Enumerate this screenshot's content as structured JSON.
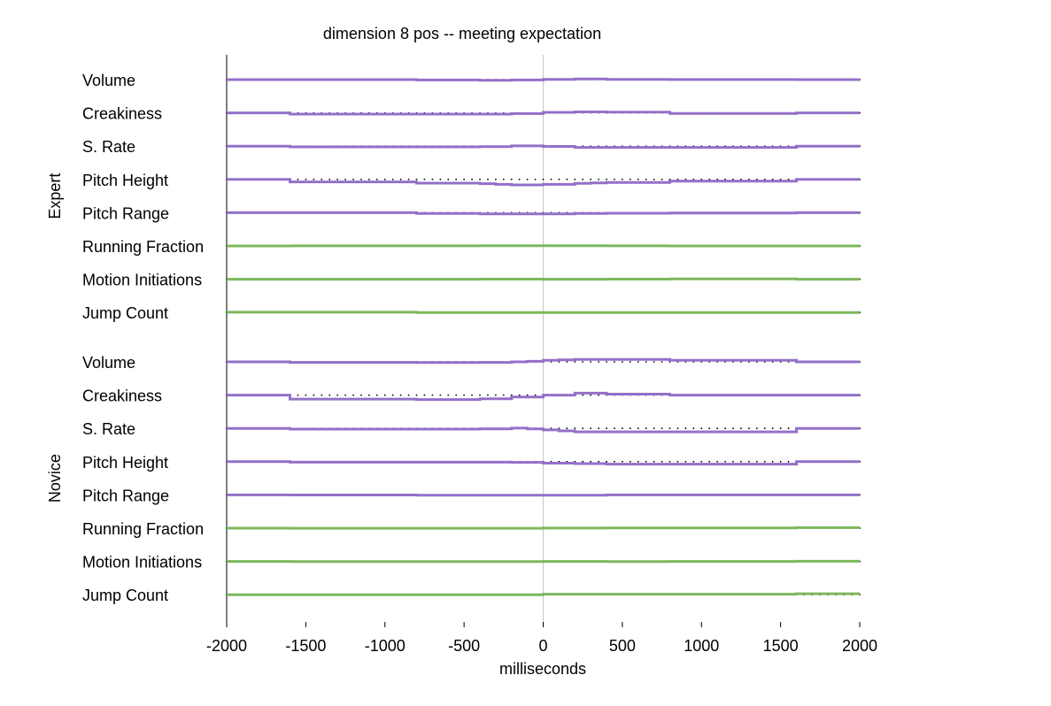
{
  "chart_data": {
    "type": "line",
    "title": "dimension 8 pos -- meeting expectation",
    "xlabel": "milliseconds",
    "xlim": [
      -2000,
      2000
    ],
    "xticks": [
      -2000,
      -1500,
      -1000,
      -500,
      0,
      500,
      1000,
      1500,
      2000
    ],
    "zero_line": 0,
    "colors": {
      "prosody": "#9370c8",
      "motion": "#7cb85c",
      "baseline_dots": "#000000",
      "zero_line": "#c8c8c8"
    },
    "groups": [
      {
        "name": "Expert",
        "tracks": [
          {
            "label": "Volume",
            "kind": "prosody",
            "segments": [
              [
                -2000,
                -1600,
                0
              ],
              [
                -1600,
                -800,
                0
              ],
              [
                -800,
                -400,
                -0.8
              ],
              [
                -400,
                -200,
                -1.5
              ],
              [
                -200,
                0,
                -0.7
              ],
              [
                0,
                200,
                0.5
              ],
              [
                200,
                400,
                1.2
              ],
              [
                400,
                800,
                0.5
              ],
              [
                800,
                1600,
                0.2
              ],
              [
                1600,
                2000,
                0
              ]
            ]
          },
          {
            "label": "Creakiness",
            "kind": "prosody",
            "segments": [
              [
                -2000,
                -1600,
                0
              ],
              [
                -1600,
                -800,
                -2.5
              ],
              [
                -800,
                -400,
                -2.5
              ],
              [
                -400,
                -200,
                -2.5
              ],
              [
                -200,
                0,
                -1.5
              ],
              [
                0,
                200,
                1
              ],
              [
                200,
                400,
                2
              ],
              [
                400,
                800,
                1.5
              ],
              [
                800,
                1600,
                -1
              ],
              [
                1600,
                2000,
                0
              ]
            ]
          },
          {
            "label": "S. Rate",
            "kind": "prosody",
            "segments": [
              [
                -2000,
                -1600,
                0
              ],
              [
                -1600,
                -800,
                -1.5
              ],
              [
                -800,
                -400,
                -1.5
              ],
              [
                -400,
                -200,
                -1
              ],
              [
                -200,
                0,
                0.5
              ],
              [
                0,
                200,
                -0.5
              ],
              [
                200,
                400,
                -2.5
              ],
              [
                400,
                800,
                -2.5
              ],
              [
                800,
                1600,
                -2.5
              ],
              [
                1600,
                2000,
                0
              ]
            ]
          },
          {
            "label": "Pitch Height",
            "kind": "prosody",
            "segments": [
              [
                -2000,
                -1600,
                0
              ],
              [
                -1600,
                -800,
                -5
              ],
              [
                -800,
                -400,
                -7.5
              ],
              [
                -400,
                -300,
                -8.5
              ],
              [
                -300,
                -200,
                -10
              ],
              [
                -200,
                0,
                -11
              ],
              [
                0,
                200,
                -10
              ],
              [
                200,
                300,
                -8
              ],
              [
                300,
                400,
                -7
              ],
              [
                400,
                800,
                -6
              ],
              [
                800,
                1600,
                -3.5
              ],
              [
                1600,
                2000,
                0
              ]
            ]
          },
          {
            "label": "Pitch Range",
            "kind": "prosody",
            "segments": [
              [
                -2000,
                -800,
                0
              ],
              [
                -800,
                -400,
                -1.5
              ],
              [
                -400,
                -200,
                -2.5
              ],
              [
                -200,
                0,
                -2.5
              ],
              [
                0,
                200,
                -2.5
              ],
              [
                200,
                400,
                -1.5
              ],
              [
                400,
                800,
                -1
              ],
              [
                800,
                1600,
                -0.5
              ],
              [
                1600,
                2000,
                0
              ]
            ]
          },
          {
            "label": "Running Fraction",
            "kind": "motion",
            "segments": [
              [
                -2000,
                -1600,
                0
              ],
              [
                -1600,
                -400,
                0.2
              ],
              [
                -400,
                400,
                0.5
              ],
              [
                400,
                800,
                0.2
              ],
              [
                800,
                1600,
                0
              ],
              [
                1600,
                2000,
                0
              ]
            ]
          },
          {
            "label": "Motion Initiations",
            "kind": "motion",
            "segments": [
              [
                -2000,
                -1600,
                0
              ],
              [
                -1600,
                -400,
                0
              ],
              [
                -400,
                0,
                0.2
              ],
              [
                0,
                400,
                0
              ],
              [
                400,
                800,
                0.2
              ],
              [
                800,
                1600,
                0.5
              ],
              [
                1600,
                2000,
                0
              ]
            ]
          },
          {
            "label": "Jump Count",
            "kind": "motion",
            "segments": [
              [
                -2000,
                -800,
                0.5
              ],
              [
                -800,
                2000,
                0
              ]
            ]
          }
        ]
      },
      {
        "name": "Novice",
        "tracks": [
          {
            "label": "Volume",
            "kind": "prosody",
            "segments": [
              [
                -2000,
                -1600,
                0
              ],
              [
                -1600,
                -800,
                -1
              ],
              [
                -800,
                -400,
                -1.5
              ],
              [
                -400,
                -200,
                -1
              ],
              [
                -200,
                -100,
                0
              ],
              [
                -100,
                0,
                1
              ],
              [
                0,
                100,
                3
              ],
              [
                100,
                200,
                4
              ],
              [
                200,
                400,
                5
              ],
              [
                400,
                800,
                5
              ],
              [
                800,
                1600,
                3
              ],
              [
                1600,
                2000,
                0
              ]
            ]
          },
          {
            "label": "Creakiness",
            "kind": "prosody",
            "segments": [
              [
                -2000,
                -1600,
                0
              ],
              [
                -1600,
                -800,
                -8
              ],
              [
                -800,
                -400,
                -9
              ],
              [
                -400,
                -200,
                -7.5
              ],
              [
                -200,
                0,
                -4
              ],
              [
                0,
                200,
                0
              ],
              [
                200,
                400,
                4
              ],
              [
                400,
                800,
                2
              ],
              [
                800,
                1600,
                0
              ],
              [
                1600,
                2000,
                0
              ]
            ]
          },
          {
            "label": "S. Rate",
            "kind": "prosody",
            "segments": [
              [
                -2000,
                -1600,
                0
              ],
              [
                -1600,
                -800,
                -1.5
              ],
              [
                -800,
                -400,
                -1.5
              ],
              [
                -400,
                -200,
                -1
              ],
              [
                -200,
                -100,
                0.5
              ],
              [
                -100,
                0,
                -1
              ],
              [
                0,
                100,
                -3
              ],
              [
                100,
                200,
                -5
              ],
              [
                200,
                400,
                -7
              ],
              [
                400,
                800,
                -7
              ],
              [
                800,
                1600,
                -7
              ],
              [
                1600,
                2000,
                0
              ]
            ]
          },
          {
            "label": "Pitch Height",
            "kind": "prosody",
            "segments": [
              [
                -2000,
                -1600,
                0
              ],
              [
                -1600,
                -800,
                -1
              ],
              [
                -800,
                -400,
                -1
              ],
              [
                -400,
                -200,
                -1
              ],
              [
                -200,
                0,
                -1.5
              ],
              [
                0,
                200,
                -3
              ],
              [
                200,
                400,
                -4
              ],
              [
                400,
                800,
                -5
              ],
              [
                800,
                1600,
                -5
              ],
              [
                1600,
                2000,
                0
              ]
            ]
          },
          {
            "label": "Pitch Range",
            "kind": "prosody",
            "segments": [
              [
                -2000,
                -1600,
                0
              ],
              [
                -1600,
                -800,
                -0.2
              ],
              [
                -800,
                -400,
                -0.5
              ],
              [
                -400,
                400,
                -0.5
              ],
              [
                400,
                800,
                0
              ],
              [
                800,
                1600,
                0
              ],
              [
                1600,
                2000,
                0
              ]
            ]
          },
          {
            "label": "Running Fraction",
            "kind": "motion",
            "segments": [
              [
                -2000,
                -1600,
                0
              ],
              [
                -1600,
                -400,
                -0.2
              ],
              [
                -400,
                0,
                -0.2
              ],
              [
                0,
                400,
                0.2
              ],
              [
                400,
                800,
                0.5
              ],
              [
                800,
                1600,
                0.5
              ],
              [
                1600,
                2000,
                1
              ]
            ]
          },
          {
            "label": "Motion Initiations",
            "kind": "motion",
            "segments": [
              [
                -2000,
                -1600,
                0
              ],
              [
                -1600,
                -400,
                -0.3
              ],
              [
                -400,
                0,
                -0.3
              ],
              [
                0,
                400,
                0
              ],
              [
                400,
                800,
                -0.3
              ],
              [
                800,
                1600,
                0
              ],
              [
                1600,
                2000,
                0.3
              ]
            ]
          },
          {
            "label": "Jump Count",
            "kind": "motion",
            "segments": [
              [
                -2000,
                0,
                0
              ],
              [
                0,
                400,
                1
              ],
              [
                400,
                1600,
                1
              ],
              [
                1600,
                2000,
                2
              ]
            ]
          }
        ]
      }
    ]
  }
}
